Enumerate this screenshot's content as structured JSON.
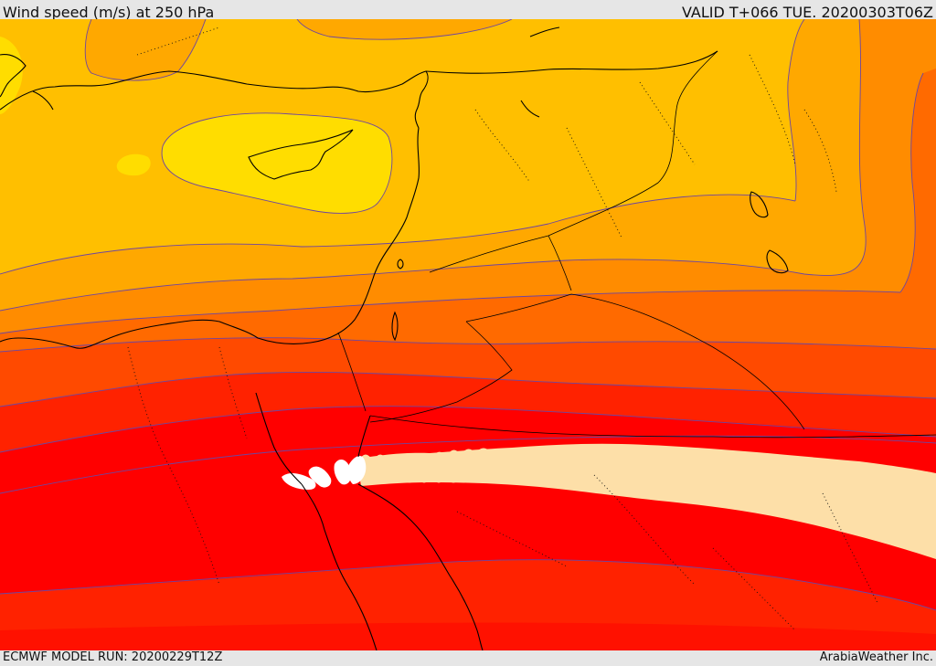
{
  "header": {
    "title": "Wind speed (m/s) at 250 hPa",
    "valid": "VALID T+066 TUE. 20200303T06Z"
  },
  "footer": {
    "model_run": "ECMWF MODEL RUN: 20200229T12Z",
    "credit": "ArabiaWeather Inc."
  },
  "colors": {
    "band_yellow": "#ffdd00",
    "band_gold": "#ffbf00",
    "band_amber": "#ffa800",
    "band_orange": "#ff8c00",
    "band_dark_orange": "#ff6a00",
    "band_red_orange": "#ff4a00",
    "band_red": "#ff2200",
    "band_core_red": "#ff0000",
    "band_peach": "#fddfa8",
    "band_white": "#ffffff",
    "contour_line": "#6e46a0",
    "coastline": "#000000"
  }
}
